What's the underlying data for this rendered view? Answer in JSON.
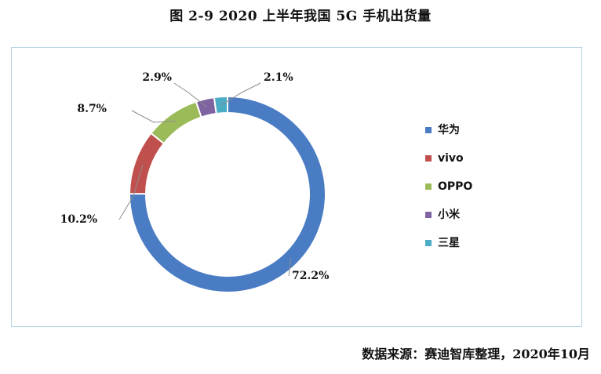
{
  "title": "图 2-9 2020 上半年我国 5G 手机出货量",
  "source": "数据来源：赛迪智库整理，2020年10月",
  "chart_data": {
    "type": "pie",
    "donut": true,
    "legend_position": "right",
    "categories": [
      "华为",
      "vivo",
      "OPPO",
      "小米",
      "三星"
    ],
    "values": [
      72.2,
      10.2,
      8.7,
      2.9,
      2.1
    ],
    "data_labels": [
      "72.2%",
      "10.2%",
      "8.7%",
      "2.9%",
      "2.1%"
    ],
    "colors": [
      "#4a7cc4",
      "#c0504d",
      "#9bbb59",
      "#8064a2",
      "#4bacc6"
    ]
  }
}
